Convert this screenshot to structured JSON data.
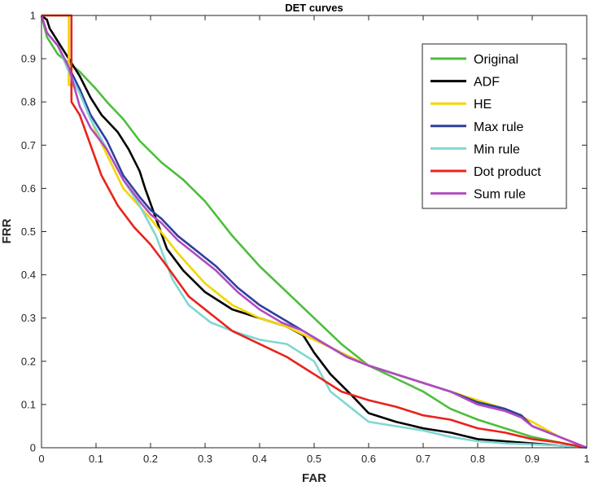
{
  "chart_data": {
    "type": "line",
    "title": "DET curves",
    "xlabel": "FAR",
    "ylabel": "FRR",
    "xlim": [
      0,
      1
    ],
    "ylim": [
      0,
      1
    ],
    "xticks": [
      "0",
      "0.1",
      "0.2",
      "0.3",
      "0.4",
      "0.5",
      "0.6",
      "0.7",
      "0.8",
      "0.9",
      "1"
    ],
    "yticks": [
      "0",
      "0.1",
      "0.2",
      "0.3",
      "0.4",
      "0.5",
      "0.6",
      "0.7",
      "0.8",
      "0.9",
      "1"
    ],
    "grid": false,
    "legend_position": "top-right",
    "series": [
      {
        "name": "Original",
        "color": "#4dbe3c",
        "points": [
          [
            0,
            1
          ],
          [
            0.01,
            0.95
          ],
          [
            0.03,
            0.91
          ],
          [
            0.05,
            0.89
          ],
          [
            0.07,
            0.87
          ],
          [
            0.1,
            0.83
          ],
          [
            0.12,
            0.8
          ],
          [
            0.15,
            0.76
          ],
          [
            0.18,
            0.71
          ],
          [
            0.22,
            0.66
          ],
          [
            0.26,
            0.62
          ],
          [
            0.3,
            0.57
          ],
          [
            0.35,
            0.49
          ],
          [
            0.4,
            0.42
          ],
          [
            0.45,
            0.36
          ],
          [
            0.5,
            0.3
          ],
          [
            0.55,
            0.24
          ],
          [
            0.6,
            0.19
          ],
          [
            0.65,
            0.16
          ],
          [
            0.7,
            0.13
          ],
          [
            0.75,
            0.09
          ],
          [
            0.8,
            0.065
          ],
          [
            0.85,
            0.045
          ],
          [
            0.9,
            0.025
          ],
          [
            0.95,
            0.012
          ],
          [
            1,
            0
          ]
        ]
      },
      {
        "name": "ADF",
        "color": "#000000",
        "points": [
          [
            0,
            1
          ],
          [
            0.01,
            0.99
          ],
          [
            0.015,
            0.97
          ],
          [
            0.02,
            0.96
          ],
          [
            0.03,
            0.94
          ],
          [
            0.05,
            0.9
          ],
          [
            0.07,
            0.86
          ],
          [
            0.09,
            0.81
          ],
          [
            0.11,
            0.77
          ],
          [
            0.14,
            0.73
          ],
          [
            0.16,
            0.69
          ],
          [
            0.18,
            0.64
          ],
          [
            0.19,
            0.6
          ],
          [
            0.21,
            0.53
          ],
          [
            0.23,
            0.46
          ],
          [
            0.26,
            0.41
          ],
          [
            0.3,
            0.36
          ],
          [
            0.35,
            0.32
          ],
          [
            0.4,
            0.3
          ],
          [
            0.45,
            0.28
          ],
          [
            0.48,
            0.26
          ],
          [
            0.5,
            0.22
          ],
          [
            0.53,
            0.17
          ],
          [
            0.57,
            0.12
          ],
          [
            0.6,
            0.08
          ],
          [
            0.65,
            0.06
          ],
          [
            0.7,
            0.045
          ],
          [
            0.75,
            0.035
          ],
          [
            0.8,
            0.02
          ],
          [
            0.85,
            0.015
          ],
          [
            0.9,
            0.01
          ],
          [
            0.95,
            0.005
          ],
          [
            1,
            0
          ]
        ]
      },
      {
        "name": "HE",
        "color": "#f2d600",
        "points": [
          [
            0,
            1
          ],
          [
            0.05,
            1
          ],
          [
            0.05,
            0.84
          ],
          [
            0.07,
            0.83
          ],
          [
            0.1,
            0.73
          ],
          [
            0.15,
            0.6
          ],
          [
            0.2,
            0.53
          ],
          [
            0.25,
            0.45
          ],
          [
            0.3,
            0.38
          ],
          [
            0.35,
            0.33
          ],
          [
            0.4,
            0.3
          ],
          [
            0.45,
            0.28
          ],
          [
            0.5,
            0.25
          ],
          [
            0.55,
            0.22
          ],
          [
            0.6,
            0.19
          ],
          [
            0.65,
            0.17
          ],
          [
            0.7,
            0.15
          ],
          [
            0.75,
            0.13
          ],
          [
            0.8,
            0.11
          ],
          [
            0.85,
            0.09
          ],
          [
            0.9,
            0.06
          ],
          [
            0.95,
            0.025
          ],
          [
            1,
            0
          ]
        ]
      },
      {
        "name": "Max rule",
        "color": "#2e3f9e",
        "points": [
          [
            0,
            1
          ],
          [
            0.01,
            0.96
          ],
          [
            0.03,
            0.93
          ],
          [
            0.05,
            0.88
          ],
          [
            0.07,
            0.83
          ],
          [
            0.09,
            0.77
          ],
          [
            0.12,
            0.71
          ],
          [
            0.15,
            0.63
          ],
          [
            0.18,
            0.58
          ],
          [
            0.2,
            0.55
          ],
          [
            0.22,
            0.53
          ],
          [
            0.25,
            0.49
          ],
          [
            0.28,
            0.46
          ],
          [
            0.32,
            0.42
          ],
          [
            0.36,
            0.37
          ],
          [
            0.4,
            0.33
          ],
          [
            0.44,
            0.3
          ],
          [
            0.48,
            0.27
          ],
          [
            0.52,
            0.24
          ],
          [
            0.56,
            0.21
          ],
          [
            0.6,
            0.19
          ],
          [
            0.65,
            0.17
          ],
          [
            0.7,
            0.15
          ],
          [
            0.75,
            0.13
          ],
          [
            0.8,
            0.105
          ],
          [
            0.85,
            0.09
          ],
          [
            0.88,
            0.075
          ],
          [
            0.9,
            0.05
          ],
          [
            0.95,
            0.025
          ],
          [
            1,
            0
          ]
        ]
      },
      {
        "name": "Min rule",
        "color": "#80d7d3",
        "points": [
          [
            0,
            1
          ],
          [
            0.01,
            0.96
          ],
          [
            0.03,
            0.93
          ],
          [
            0.05,
            0.87
          ],
          [
            0.07,
            0.82
          ],
          [
            0.09,
            0.76
          ],
          [
            0.12,
            0.69
          ],
          [
            0.15,
            0.62
          ],
          [
            0.18,
            0.56
          ],
          [
            0.21,
            0.49
          ],
          [
            0.24,
            0.39
          ],
          [
            0.27,
            0.33
          ],
          [
            0.31,
            0.29
          ],
          [
            0.35,
            0.27
          ],
          [
            0.4,
            0.25
          ],
          [
            0.45,
            0.24
          ],
          [
            0.5,
            0.2
          ],
          [
            0.53,
            0.13
          ],
          [
            0.57,
            0.09
          ],
          [
            0.6,
            0.06
          ],
          [
            0.65,
            0.05
          ],
          [
            0.7,
            0.04
          ],
          [
            0.75,
            0.025
          ],
          [
            0.8,
            0.015
          ],
          [
            0.85,
            0.01
          ],
          [
            0.9,
            0.008
          ],
          [
            0.95,
            0.005
          ],
          [
            1,
            0
          ]
        ]
      },
      {
        "name": "Dot product",
        "color": "#e8231c",
        "points": [
          [
            0,
            1
          ],
          [
            0.055,
            1
          ],
          [
            0.055,
            0.8
          ],
          [
            0.07,
            0.77
          ],
          [
            0.09,
            0.7
          ],
          [
            0.11,
            0.63
          ],
          [
            0.14,
            0.56
          ],
          [
            0.17,
            0.51
          ],
          [
            0.2,
            0.47
          ],
          [
            0.23,
            0.42
          ],
          [
            0.27,
            0.35
          ],
          [
            0.31,
            0.31
          ],
          [
            0.35,
            0.27
          ],
          [
            0.4,
            0.24
          ],
          [
            0.45,
            0.21
          ],
          [
            0.5,
            0.17
          ],
          [
            0.55,
            0.13
          ],
          [
            0.6,
            0.11
          ],
          [
            0.65,
            0.095
          ],
          [
            0.7,
            0.075
          ],
          [
            0.75,
            0.065
          ],
          [
            0.8,
            0.045
          ],
          [
            0.85,
            0.035
          ],
          [
            0.9,
            0.02
          ],
          [
            0.95,
            0.012
          ],
          [
            1,
            0
          ]
        ]
      },
      {
        "name": "Sum rule",
        "color": "#b24bbf",
        "points": [
          [
            0,
            1
          ],
          [
            0.01,
            0.96
          ],
          [
            0.03,
            0.93
          ],
          [
            0.05,
            0.88
          ],
          [
            0.07,
            0.79
          ],
          [
            0.09,
            0.74
          ],
          [
            0.12,
            0.69
          ],
          [
            0.15,
            0.62
          ],
          [
            0.18,
            0.57
          ],
          [
            0.2,
            0.54
          ],
          [
            0.22,
            0.52
          ],
          [
            0.25,
            0.48
          ],
          [
            0.28,
            0.45
          ],
          [
            0.32,
            0.41
          ],
          [
            0.36,
            0.36
          ],
          [
            0.4,
            0.32
          ],
          [
            0.44,
            0.29
          ],
          [
            0.48,
            0.27
          ],
          [
            0.52,
            0.24
          ],
          [
            0.56,
            0.21
          ],
          [
            0.6,
            0.19
          ],
          [
            0.65,
            0.17
          ],
          [
            0.7,
            0.15
          ],
          [
            0.75,
            0.13
          ],
          [
            0.8,
            0.1
          ],
          [
            0.85,
            0.085
          ],
          [
            0.88,
            0.07
          ],
          [
            0.9,
            0.05
          ],
          [
            0.95,
            0.025
          ],
          [
            1,
            0
          ]
        ]
      }
    ]
  }
}
